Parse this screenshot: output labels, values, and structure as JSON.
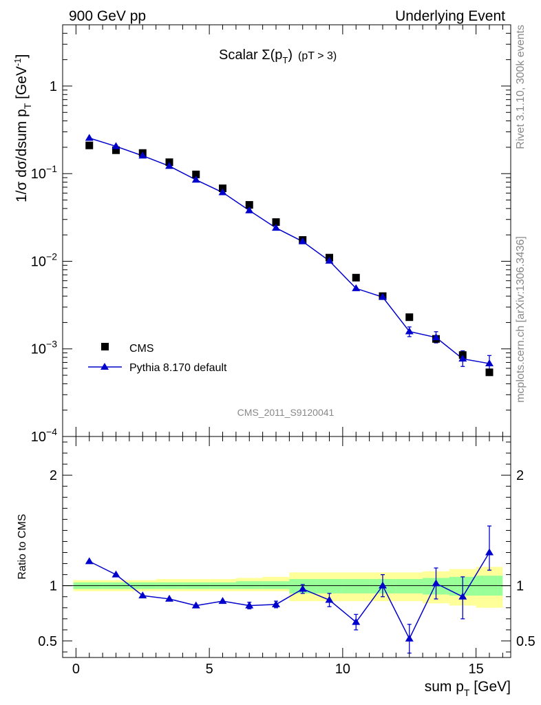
{
  "header": {
    "left": "900 GeV pp",
    "right": "Underlying Event"
  },
  "side_text": {
    "rivet": "Rivet 3.1.10,  300k events",
    "mcplots": "mcplots.cern.ch [arXiv:1306.3436]"
  },
  "colors": {
    "mc": "#0000cc",
    "data": "#000000",
    "band_outer": "#ffff99",
    "band_inner": "#99ff99",
    "side_text": "#888888"
  },
  "chart_data": [
    {
      "type": "scatter",
      "panel": "main",
      "title": "Scalar Σ(p_T) (pT > 3)",
      "title_parts": {
        "main": "Scalar Σ(p",
        "sub": "T",
        "close": ")",
        "cut": "(pT >  3)"
      },
      "ylabel": "1/σ dσ/dsum p_T [GeV⁻¹]",
      "ylabel_parts": {
        "main": "1/σ dσ/dsum p",
        "sub": "T",
        "unit": " [GeV",
        "sup": "-1",
        "close": "]"
      },
      "yscale": "log",
      "xlim": [
        -0.5,
        16.3
      ],
      "ylim": [
        0.0001,
        5
      ],
      "y_ticks": [
        {
          "value": 1,
          "base": "1",
          "exp": ""
        },
        {
          "value": 0.1,
          "base": "10",
          "exp": "−1"
        },
        {
          "value": 0.01,
          "base": "10",
          "exp": "−2"
        },
        {
          "value": 0.001,
          "base": "10",
          "exp": "−3"
        },
        {
          "value": 0.0001,
          "base": "10",
          "exp": "−4"
        }
      ],
      "watermark": "CMS_2011_S9120041",
      "legend": {
        "position": "lower-left",
        "entries": [
          "CMS",
          "Pythia 8.170 default"
        ]
      },
      "series": [
        {
          "name": "CMS",
          "marker": "square",
          "x": [
            0.5,
            1.5,
            2.5,
            3.5,
            4.5,
            5.5,
            6.5,
            7.5,
            8.5,
            9.5,
            10.5,
            11.5,
            12.5,
            13.5,
            14.5,
            15.5
          ],
          "y": [
            0.21,
            0.185,
            0.172,
            0.135,
            0.098,
            0.068,
            0.044,
            0.028,
            0.0175,
            0.011,
            0.0065,
            0.004,
            0.0023,
            0.0013,
            0.00085,
            0.00054
          ]
        },
        {
          "name": "Pythia 8.170 default",
          "marker": "triangle",
          "x": [
            0.5,
            1.5,
            2.5,
            3.5,
            4.5,
            5.5,
            6.5,
            7.5,
            8.5,
            9.5,
            10.5,
            11.5,
            12.5,
            13.5,
            14.5,
            15.5
          ],
          "y": [
            0.255,
            0.205,
            0.16,
            0.122,
            0.085,
            0.061,
            0.038,
            0.024,
            0.0168,
            0.0101,
            0.0049,
            0.0039,
            0.00158,
            0.00135,
            0.00077,
            0.00068
          ],
          "err_lo": [
            0,
            0,
            0,
            0,
            0,
            0,
            0,
            0,
            0,
            0,
            0,
            0,
            0.0002,
            0.00018,
            0.00014,
            0.00014
          ],
          "err_hi": [
            0,
            0,
            0,
            0,
            0,
            0,
            0,
            0,
            0,
            0,
            0,
            0,
            0.0002,
            0.00022,
            0.00018,
            0.00016
          ]
        }
      ]
    },
    {
      "type": "line",
      "panel": "ratio",
      "ylabel": "Ratio to CMS",
      "xlabel": "sum p_T [GeV]",
      "xlabel_parts": {
        "main": "sum p",
        "sub": "T",
        "unit": " [GeV]"
      },
      "xlim": [
        -0.5,
        16.3
      ],
      "ylim": [
        0.35,
        2.35
      ],
      "x_ticks": [
        0,
        5,
        10,
        15
      ],
      "y_ticks": [
        0.5,
        1,
        2
      ],
      "y_tick_labels": [
        "0.5",
        "1",
        "2"
      ],
      "reference_line": 1,
      "bands": {
        "edges": [
          -0.1,
          1,
          2,
          3,
          4,
          5,
          6,
          7,
          8,
          9,
          10,
          11,
          12,
          13,
          14,
          15,
          16
        ],
        "outer_lo": [
          0.95,
          0.95,
          0.95,
          0.95,
          0.95,
          0.95,
          0.95,
          0.95,
          0.86,
          0.86,
          0.86,
          0.86,
          0.86,
          0.84,
          0.82,
          0.8
        ],
        "outer_hi": [
          1.05,
          1.05,
          1.05,
          1.06,
          1.06,
          1.06,
          1.07,
          1.08,
          1.12,
          1.12,
          1.12,
          1.12,
          1.12,
          1.13,
          1.15,
          1.17
        ],
        "inner_lo": [
          0.97,
          0.97,
          0.97,
          0.97,
          0.97,
          0.97,
          0.97,
          0.97,
          0.93,
          0.93,
          0.93,
          0.93,
          0.93,
          0.92,
          0.91,
          0.91
        ],
        "inner_hi": [
          1.03,
          1.03,
          1.03,
          1.03,
          1.03,
          1.03,
          1.04,
          1.04,
          1.06,
          1.06,
          1.06,
          1.06,
          1.06,
          1.07,
          1.08,
          1.09
        ]
      },
      "series": [
        {
          "name": "Pythia 8.170 default / CMS",
          "x": [
            0.5,
            1.5,
            2.5,
            3.5,
            4.5,
            5.5,
            6.5,
            7.5,
            8.5,
            9.5,
            10.5,
            11.5,
            12.5,
            13.5,
            14.5,
            15.5
          ],
          "y": [
            1.22,
            1.1,
            0.91,
            0.88,
            0.82,
            0.86,
            0.82,
            0.83,
            0.97,
            0.87,
            0.67,
            1.0,
            0.52,
            1.02,
            0.9,
            1.3
          ],
          "err_lo": [
            0,
            0,
            0,
            0,
            0,
            0,
            0.03,
            0.03,
            0.04,
            0.06,
            0.07,
            0.1,
            0.13,
            0.14,
            0.2,
            0.16
          ],
          "err_hi": [
            0,
            0,
            0,
            0,
            0,
            0,
            0.03,
            0.03,
            0.04,
            0.06,
            0.07,
            0.1,
            0.13,
            0.14,
            0.18,
            0.24
          ]
        }
      ]
    }
  ]
}
